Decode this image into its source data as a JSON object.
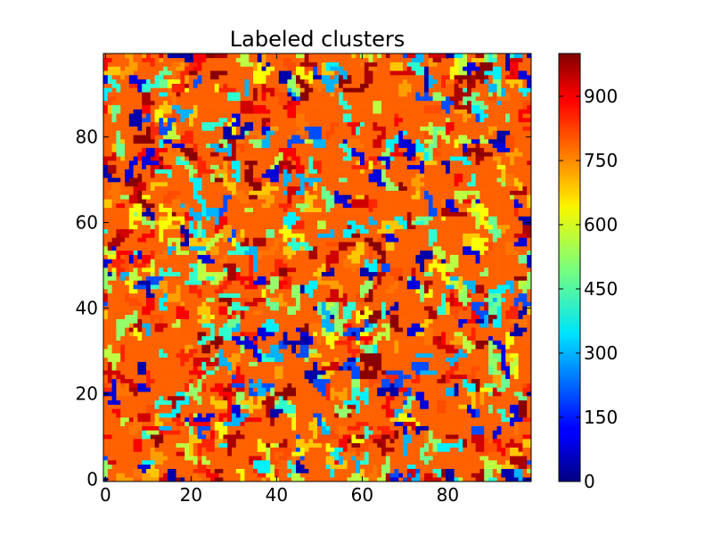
{
  "chart_data": {
    "type": "heatmap",
    "title": "Labeled clusters",
    "xlabel": "",
    "ylabel": "",
    "grid_size": [
      100,
      100
    ],
    "xlim": [
      0,
      99
    ],
    "ylim": [
      0,
      99
    ],
    "x_ticks": [
      0,
      20,
      40,
      60,
      80
    ],
    "y_ticks": [
      0,
      20,
      40,
      60,
      80
    ],
    "colormap": "jet",
    "colorbar": {
      "range": [
        0,
        1000
      ],
      "ticks": [
        0,
        150,
        300,
        450,
        600,
        750,
        900
      ]
    },
    "dominant_value": 780,
    "background_colors": {
      "dominant": "#FFA500",
      "frame": "#000000"
    }
  }
}
